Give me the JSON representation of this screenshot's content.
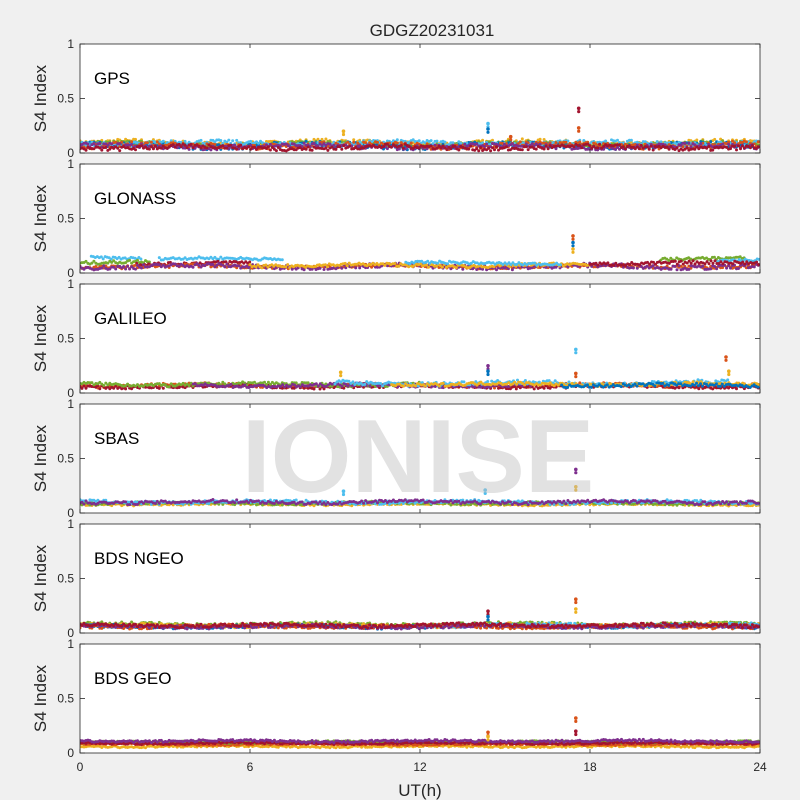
{
  "chart_data": {
    "type": "scatter",
    "title": "GDGZ20231031",
    "xlabel": "UT(h)",
    "ylabel": "S4 Index",
    "xlim": [
      0,
      24
    ],
    "ylim": [
      0,
      1
    ],
    "xticks": [
      "0",
      "6",
      "12",
      "18",
      "24"
    ],
    "yticks": [
      "0",
      "0.5",
      "1"
    ],
    "watermark": "IONISE",
    "series_colors": [
      "#0072BD",
      "#D95319",
      "#EDB120",
      "#7E2F8E",
      "#77AC30",
      "#4DBEEE",
      "#A2142F"
    ],
    "panels": [
      {
        "label": "GPS",
        "bands": [
          {
            "color": "#EDB120",
            "start": 0,
            "end": 24,
            "base": 0.09,
            "noise": 0.025
          },
          {
            "color": "#77AC30",
            "start": 0,
            "end": 24,
            "base": 0.08,
            "noise": 0.02
          },
          {
            "color": "#0072BD",
            "start": 0,
            "end": 24,
            "base": 0.07,
            "noise": 0.025
          },
          {
            "color": "#4DBEEE",
            "start": 0,
            "end": 24,
            "base": 0.09,
            "noise": 0.02
          },
          {
            "color": "#D95319",
            "start": 0,
            "end": 24,
            "base": 0.07,
            "noise": 0.025
          },
          {
            "color": "#7E2F8E",
            "start": 0,
            "end": 24,
            "base": 0.06,
            "noise": 0.02
          },
          {
            "color": "#A2142F",
            "start": 0,
            "end": 24,
            "base": 0.05,
            "noise": 0.02
          }
        ],
        "spikes": [
          {
            "x": 9.3,
            "y": 0.2,
            "color": "#EDB120"
          },
          {
            "x": 14.4,
            "y": 0.27,
            "color": "#4DBEEE"
          },
          {
            "x": 14.4,
            "y": 0.22,
            "color": "#0072BD"
          },
          {
            "x": 15.2,
            "y": 0.15,
            "color": "#D95319"
          },
          {
            "x": 17.6,
            "y": 0.41,
            "color": "#A2142F"
          },
          {
            "x": 17.6,
            "y": 0.23,
            "color": "#D95319"
          }
        ]
      },
      {
        "label": "GLONASS",
        "bands": [
          {
            "color": "#4DBEEE",
            "start": 0.4,
            "end": 2.2,
            "base": 0.14,
            "noise": 0.012
          },
          {
            "color": "#4DBEEE",
            "start": 2.8,
            "end": 7.2,
            "base": 0.13,
            "noise": 0.012
          },
          {
            "color": "#77AC30",
            "start": 0,
            "end": 2.5,
            "base": 0.1,
            "noise": 0.015
          },
          {
            "color": "#A2142F",
            "start": 2.0,
            "end": 6.0,
            "base": 0.09,
            "noise": 0.015
          },
          {
            "color": "#D95319",
            "start": 0,
            "end": 24,
            "base": 0.06,
            "noise": 0.015
          },
          {
            "color": "#7E2F8E",
            "start": 0,
            "end": 24,
            "base": 0.06,
            "noise": 0.02
          },
          {
            "color": "#EDB120",
            "start": 6,
            "end": 18,
            "base": 0.07,
            "noise": 0.015
          },
          {
            "color": "#4DBEEE",
            "start": 11.5,
            "end": 17.0,
            "base": 0.09,
            "noise": 0.012
          },
          {
            "color": "#77AC30",
            "start": 20.5,
            "end": 23.5,
            "base": 0.13,
            "noise": 0.012
          },
          {
            "color": "#4DBEEE",
            "start": 22.5,
            "end": 24,
            "base": 0.11,
            "noise": 0.012
          },
          {
            "color": "#A2142F",
            "start": 18,
            "end": 24,
            "base": 0.09,
            "noise": 0.015
          }
        ],
        "spikes": [
          {
            "x": 17.4,
            "y": 0.34,
            "color": "#D95319"
          },
          {
            "x": 17.4,
            "y": 0.28,
            "color": "#0072BD"
          },
          {
            "x": 17.4,
            "y": 0.22,
            "color": "#EDB120"
          }
        ]
      },
      {
        "label": "GALILEO",
        "bands": [
          {
            "color": "#D95319",
            "start": 0,
            "end": 24,
            "base": 0.07,
            "noise": 0.015
          },
          {
            "color": "#A2142F",
            "start": 0,
            "end": 24,
            "base": 0.06,
            "noise": 0.015
          },
          {
            "color": "#77AC30",
            "start": 0,
            "end": 12,
            "base": 0.08,
            "noise": 0.015
          },
          {
            "color": "#7E2F8E",
            "start": 4,
            "end": 16,
            "base": 0.07,
            "noise": 0.015
          },
          {
            "color": "#4DBEEE",
            "start": 9,
            "end": 23,
            "base": 0.09,
            "noise": 0.02
          },
          {
            "color": "#EDB120",
            "start": 11,
            "end": 24,
            "base": 0.08,
            "noise": 0.015
          },
          {
            "color": "#0072BD",
            "start": 17,
            "end": 24,
            "base": 0.07,
            "noise": 0.015
          }
        ],
        "spikes": [
          {
            "x": 9.2,
            "y": 0.19,
            "color": "#EDB120"
          },
          {
            "x": 14.4,
            "y": 0.25,
            "color": "#7E2F8E"
          },
          {
            "x": 14.4,
            "y": 0.2,
            "color": "#0072BD"
          },
          {
            "x": 17.5,
            "y": 0.4,
            "color": "#4DBEEE"
          },
          {
            "x": 17.5,
            "y": 0.18,
            "color": "#D95319"
          },
          {
            "x": 22.8,
            "y": 0.33,
            "color": "#D95319"
          },
          {
            "x": 22.9,
            "y": 0.2,
            "color": "#EDB120"
          }
        ]
      },
      {
        "label": "SBAS",
        "bands": [
          {
            "color": "#EDB120",
            "start": 0,
            "end": 24,
            "base": 0.08,
            "noise": 0.01
          },
          {
            "color": "#77AC30",
            "start": 0,
            "end": 24,
            "base": 0.09,
            "noise": 0.012
          },
          {
            "color": "#4DBEEE",
            "start": 0,
            "end": 24,
            "base": 0.1,
            "noise": 0.015
          },
          {
            "color": "#7E2F8E",
            "start": 0,
            "end": 24,
            "base": 0.1,
            "noise": 0.015
          }
        ],
        "spikes": [
          {
            "x": 9.3,
            "y": 0.2,
            "color": "#4DBEEE"
          },
          {
            "x": 14.3,
            "y": 0.21,
            "color": "#4DBEEE"
          },
          {
            "x": 17.5,
            "y": 0.4,
            "color": "#7E2F8E"
          },
          {
            "x": 17.5,
            "y": 0.24,
            "color": "#EDB120"
          }
        ]
      },
      {
        "label": "BDS NGEO",
        "bands": [
          {
            "color": "#77AC30",
            "start": 0,
            "end": 24,
            "base": 0.08,
            "noise": 0.015
          },
          {
            "color": "#EDB120",
            "start": 0,
            "end": 24,
            "base": 0.07,
            "noise": 0.015
          },
          {
            "color": "#0072BD",
            "start": 0,
            "end": 24,
            "base": 0.06,
            "noise": 0.015
          },
          {
            "color": "#4DBEEE",
            "start": 12,
            "end": 24,
            "base": 0.07,
            "noise": 0.015
          },
          {
            "color": "#D95319",
            "start": 0,
            "end": 24,
            "base": 0.06,
            "noise": 0.015
          },
          {
            "color": "#7E2F8E",
            "start": 0,
            "end": 24,
            "base": 0.06,
            "noise": 0.015
          },
          {
            "color": "#A2142F",
            "start": 0,
            "end": 24,
            "base": 0.07,
            "noise": 0.015
          }
        ],
        "spikes": [
          {
            "x": 14.4,
            "y": 0.2,
            "color": "#A2142F"
          },
          {
            "x": 14.4,
            "y": 0.15,
            "color": "#0072BD"
          },
          {
            "x": 17.5,
            "y": 0.31,
            "color": "#D95319"
          },
          {
            "x": 17.5,
            "y": 0.22,
            "color": "#EDB120"
          }
        ]
      },
      {
        "label": "BDS GEO",
        "bands": [
          {
            "color": "#EDB120",
            "start": 0,
            "end": 24,
            "base": 0.06,
            "noise": 0.008
          },
          {
            "color": "#D95319",
            "start": 0,
            "end": 24,
            "base": 0.08,
            "noise": 0.008
          },
          {
            "color": "#77AC30",
            "start": 0,
            "end": 24,
            "base": 0.1,
            "noise": 0.008
          },
          {
            "color": "#A2142F",
            "start": 0,
            "end": 24,
            "base": 0.09,
            "noise": 0.008
          },
          {
            "color": "#7E2F8E",
            "start": 0,
            "end": 24,
            "base": 0.11,
            "noise": 0.01
          }
        ],
        "spikes": [
          {
            "x": 14.4,
            "y": 0.19,
            "color": "#D95319"
          },
          {
            "x": 14.4,
            "y": 0.15,
            "color": "#EDB120"
          },
          {
            "x": 17.5,
            "y": 0.32,
            "color": "#D95319"
          },
          {
            "x": 17.5,
            "y": 0.2,
            "color": "#A2142F"
          }
        ]
      }
    ]
  }
}
